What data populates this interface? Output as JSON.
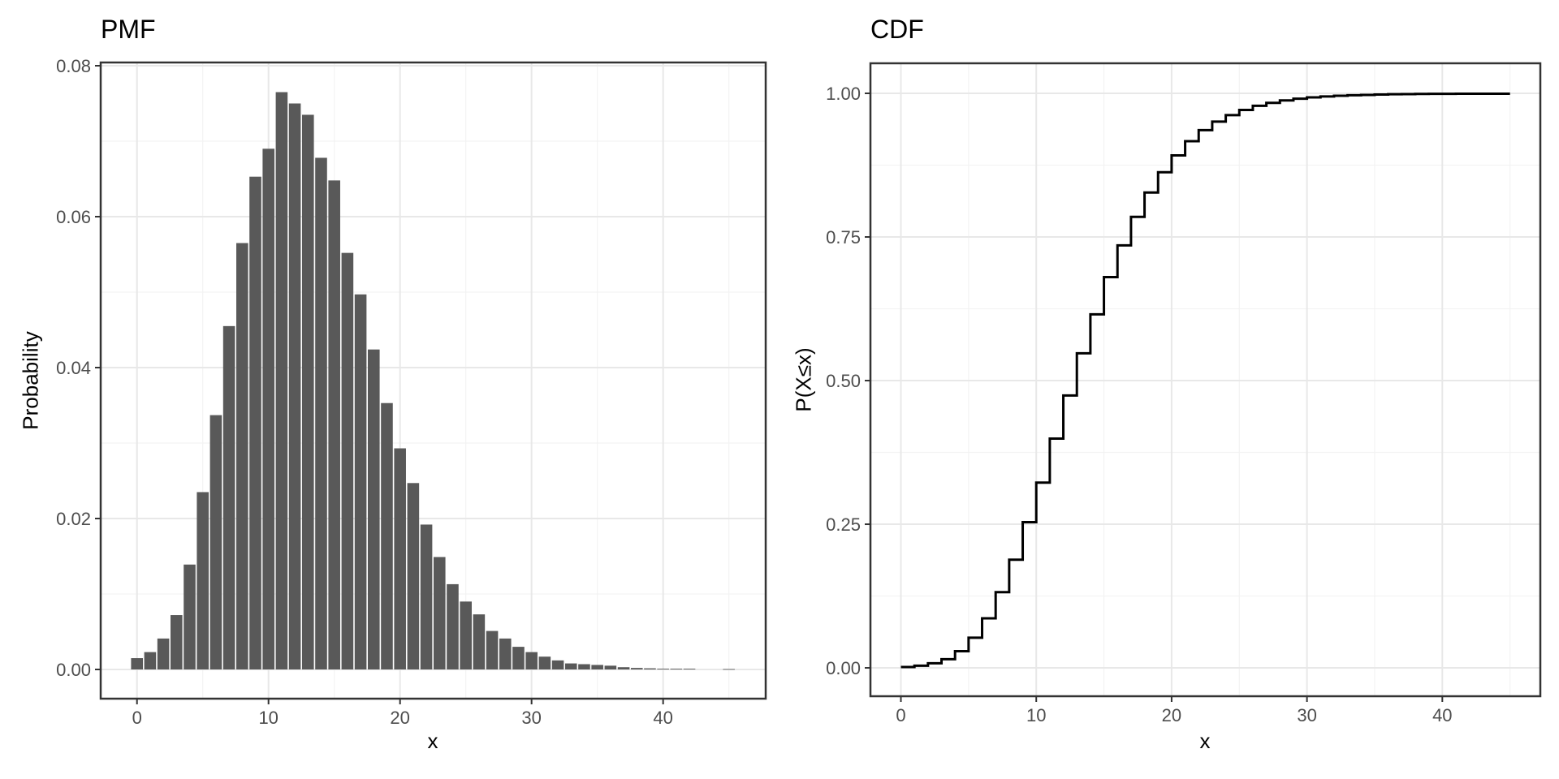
{
  "figure": {
    "background": "#ffffff",
    "panel_titles": [
      "PMF",
      "CDF"
    ]
  },
  "style": {
    "panel_border": "#333333",
    "grid_major": "#e8e8e8",
    "grid_minor": "#f3f3f3",
    "tick_color": "#333333",
    "tick_label_color": "#4d4d4d",
    "title_color": "#000000",
    "bar_color": "#595959",
    "line_color": "#000000"
  },
  "chart_data": [
    {
      "type": "bar",
      "title": "PMF",
      "xlabel": "x",
      "ylabel": "Probability",
      "x": [
        0,
        1,
        2,
        3,
        4,
        5,
        6,
        7,
        8,
        9,
        10,
        11,
        12,
        13,
        14,
        15,
        16,
        17,
        18,
        19,
        20,
        21,
        22,
        23,
        24,
        25,
        26,
        27,
        28,
        29,
        30,
        31,
        32,
        33,
        34,
        35,
        36,
        37,
        38,
        39,
        40,
        41,
        42,
        43,
        44,
        45
      ],
      "values": [
        0.0015,
        0.0023,
        0.0041,
        0.0072,
        0.0139,
        0.0235,
        0.0337,
        0.0455,
        0.0565,
        0.0653,
        0.069,
        0.0765,
        0.075,
        0.0735,
        0.0678,
        0.0648,
        0.0552,
        0.0497,
        0.0424,
        0.0353,
        0.0293,
        0.0247,
        0.0192,
        0.0149,
        0.0113,
        0.009,
        0.0073,
        0.0051,
        0.0041,
        0.003,
        0.0023,
        0.0017,
        0.0012,
        0.0008,
        0.0007,
        0.0006,
        0.0005,
        0.0003,
        0.0002,
        0.00015,
        0.0001,
        0.0001,
        0.0001,
        0,
        0,
        5e-05
      ],
      "bar_width": 0.9,
      "xticks": [
        0,
        10,
        20,
        30,
        40
      ],
      "xtick_labels": [
        "0",
        "10",
        "20",
        "30",
        "40"
      ],
      "yticks": [
        0,
        0.02,
        0.04,
        0.06,
        0.08
      ],
      "ytick_labels": [
        "0.00",
        "0.02",
        "0.04",
        "0.06",
        "0.08"
      ],
      "x_minor": [
        5,
        15,
        25,
        35,
        45
      ],
      "y_minor": [
        0.01,
        0.03,
        0.05,
        0.07
      ],
      "xlim": [
        -2.76,
        47.8
      ],
      "ylim": [
        -0.00387,
        0.08043
      ],
      "grid": true,
      "legend": "none"
    },
    {
      "type": "line",
      "subtype": "step",
      "title": "CDF",
      "xlabel": "x",
      "ylabel": "P(X≤x)",
      "x": [
        0,
        1,
        2,
        3,
        4,
        5,
        6,
        7,
        8,
        9,
        10,
        11,
        12,
        13,
        14,
        15,
        16,
        17,
        18,
        19,
        20,
        21,
        22,
        23,
        24,
        25,
        26,
        27,
        28,
        29,
        30,
        31,
        32,
        33,
        34,
        35,
        36,
        37,
        38,
        39,
        40,
        41,
        42,
        43,
        44,
        45
      ],
      "values": [
        0.0015,
        0.0038,
        0.0079,
        0.0151,
        0.029,
        0.0525,
        0.0862,
        0.1317,
        0.1882,
        0.2535,
        0.3225,
        0.399,
        0.474,
        0.5475,
        0.6153,
        0.6801,
        0.7353,
        0.785,
        0.8274,
        0.8627,
        0.892,
        0.9167,
        0.9359,
        0.9508,
        0.9621,
        0.9711,
        0.9784,
        0.9835,
        0.9876,
        0.9906,
        0.9929,
        0.9946,
        0.9958,
        0.9966,
        0.9973,
        0.9979,
        0.9984,
        0.9987,
        0.9989,
        0.9991,
        0.9992,
        0.9993,
        0.9994,
        0.9994,
        0.9994,
        0.9994
      ],
      "xticks": [
        0,
        10,
        20,
        30,
        40
      ],
      "xtick_labels": [
        "0",
        "10",
        "20",
        "30",
        "40"
      ],
      "yticks": [
        0,
        0.25,
        0.5,
        0.75,
        1
      ],
      "ytick_labels": [
        "0.00",
        "0.25",
        "0.50",
        "0.75",
        "1.00"
      ],
      "x_minor": [
        5,
        15,
        25,
        35,
        45
      ],
      "y_minor": [
        0.125,
        0.375,
        0.625,
        0.875
      ],
      "xlim": [
        -2.25,
        47.24
      ],
      "ylim": [
        -0.0494,
        1.0523
      ],
      "grid": true,
      "legend": "none"
    }
  ]
}
